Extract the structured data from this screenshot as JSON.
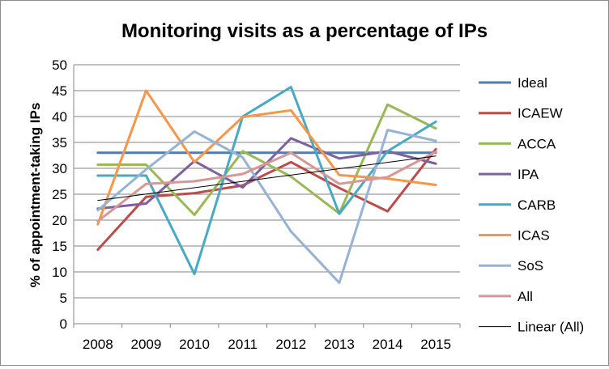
{
  "chart_data": {
    "type": "line",
    "title": "Monitoring visits as a percentage of IPs",
    "xlabel": "",
    "ylabel": "% of appointment-taking IPs",
    "categories": [
      "2008",
      "2009",
      "2010",
      "2011",
      "2012",
      "2013",
      "2014",
      "2015"
    ],
    "ylim": [
      0,
      50
    ],
    "yticks": [
      0,
      5,
      10,
      15,
      20,
      25,
      30,
      35,
      40,
      45,
      50
    ],
    "grid": "horizontal",
    "legend_position": "right",
    "series": [
      {
        "name": "Ideal",
        "color": "#4a7ebb",
        "values": [
          33,
          33,
          33,
          33,
          33,
          33,
          33,
          33
        ]
      },
      {
        "name": "ICAEW",
        "color": "#be4b48",
        "values": [
          14.3,
          24.5,
          25.2,
          26.7,
          31.2,
          26.2,
          21.7,
          33.7
        ]
      },
      {
        "name": "ACCA",
        "color": "#98b954",
        "values": [
          30.7,
          30.7,
          21.0,
          33.3,
          28.4,
          21.3,
          42.3,
          37.7
        ]
      },
      {
        "name": "IPA",
        "color": "#7d60a0",
        "values": [
          22.2,
          23.2,
          31.4,
          26.3,
          35.8,
          31.9,
          33.3,
          30.9
        ]
      },
      {
        "name": "CARB",
        "color": "#46aac5",
        "values": [
          28.6,
          28.6,
          9.6,
          40.0,
          45.7,
          21.2,
          33.3,
          39.0
        ]
      },
      {
        "name": "ICAS",
        "color": "#f79646",
        "values": [
          19.2,
          45.0,
          31.2,
          39.9,
          41.2,
          28.7,
          28.0,
          26.8
        ]
      },
      {
        "name": "SoS",
        "color": "#95b3d7",
        "values": [
          21.9,
          29.8,
          37.1,
          32.1,
          17.8,
          7.9,
          37.4,
          35.3
        ]
      },
      {
        "name": "All",
        "color": "#da9694",
        "values": [
          19.8,
          27.0,
          27.5,
          28.9,
          33.0,
          27.0,
          28.3,
          33.2
        ]
      },
      {
        "name": "Linear (All)",
        "color": "#000000",
        "trendline_of": "All"
      }
    ]
  }
}
